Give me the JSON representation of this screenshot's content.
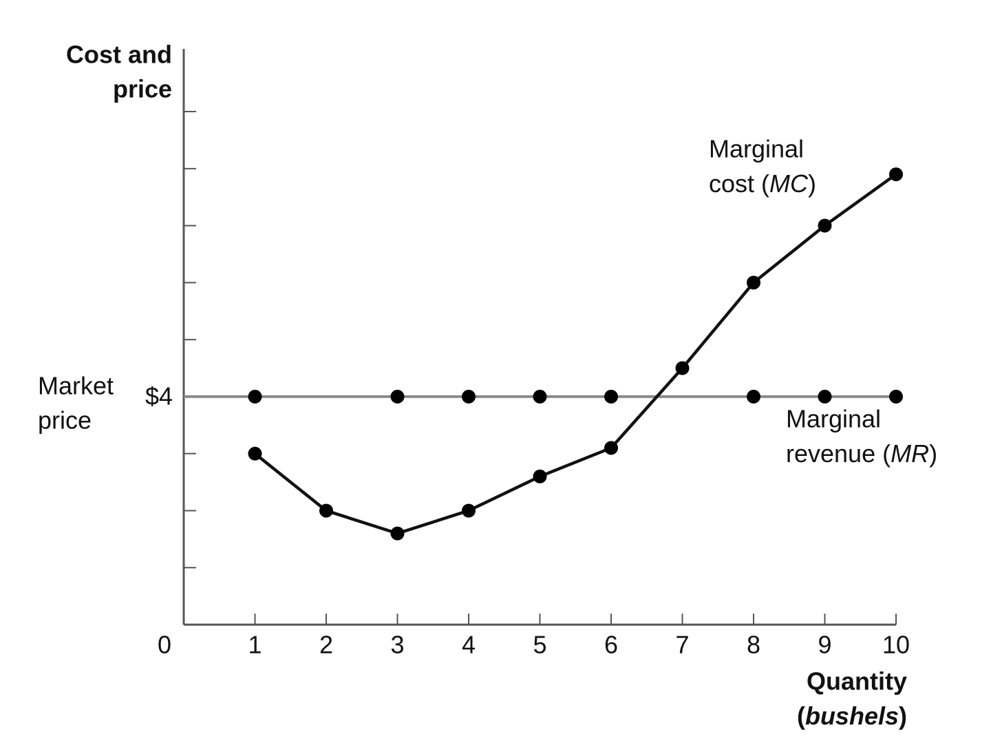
{
  "chart_data": {
    "type": "line",
    "y_label": [
      "Cost and",
      "price"
    ],
    "x_label": [
      "Quantity",
      "(bushels)"
    ],
    "xlim": [
      0,
      10
    ],
    "xticks": [
      0,
      1,
      2,
      3,
      4,
      5,
      6,
      7,
      8,
      9,
      10
    ],
    "ylim": [
      0,
      10.1
    ],
    "yticks": [
      1,
      2,
      3,
      {
        "value": 4,
        "label": "$4"
      },
      5,
      6,
      7,
      8,
      9
    ],
    "market_price_label": [
      "Market",
      "price"
    ],
    "series": [
      {
        "name": [
          "Marginal",
          "cost (MC)"
        ],
        "color": "#111111",
        "x": [
          1,
          2,
          3,
          4,
          5,
          6,
          7,
          8,
          9,
          10
        ],
        "values": [
          3,
          2,
          1.6,
          2,
          2.6,
          3.1,
          4.5,
          6,
          7,
          7.9
        ]
      },
      {
        "name": [
          "Marginal",
          "revenue (MR)"
        ],
        "color": "#8a8a8a",
        "x": [
          1,
          3,
          4,
          5,
          6,
          8,
          9,
          10
        ],
        "values": [
          4,
          4,
          4,
          4,
          4,
          4,
          4,
          4
        ]
      }
    ]
  }
}
